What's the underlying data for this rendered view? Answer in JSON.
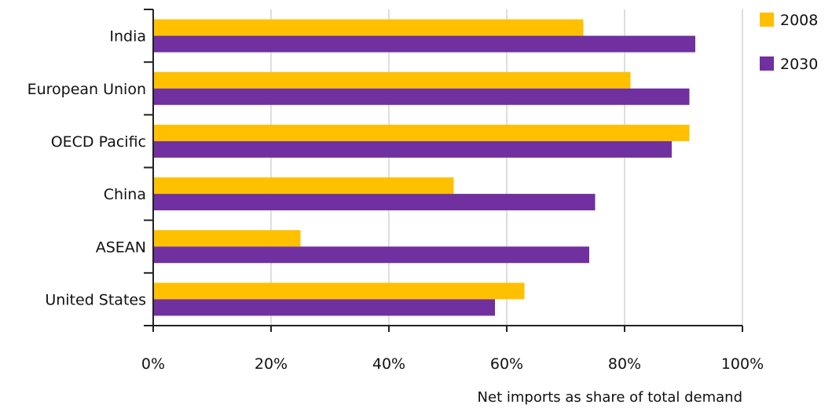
{
  "chart_data": {
    "type": "bar",
    "orientation": "horizontal",
    "categories": [
      "India",
      "European Union",
      "OECD Pacific",
      "China",
      "ASEAN",
      "United States"
    ],
    "series": [
      {
        "name": "2008",
        "color": "#FFC000",
        "values": [
          73,
          81,
          91,
          51,
          25,
          63
        ]
      },
      {
        "name": "2030",
        "color": "#7030A0",
        "values": [
          92,
          91,
          88,
          75,
          74,
          58
        ]
      }
    ],
    "xlabel": "Net imports as share of total demand",
    "xlim": [
      0,
      100
    ],
    "xticks": [
      "0%",
      "20%",
      "40%",
      "60%",
      "80%",
      "100%"
    ],
    "grid": "vertical",
    "legend": "top-right"
  }
}
